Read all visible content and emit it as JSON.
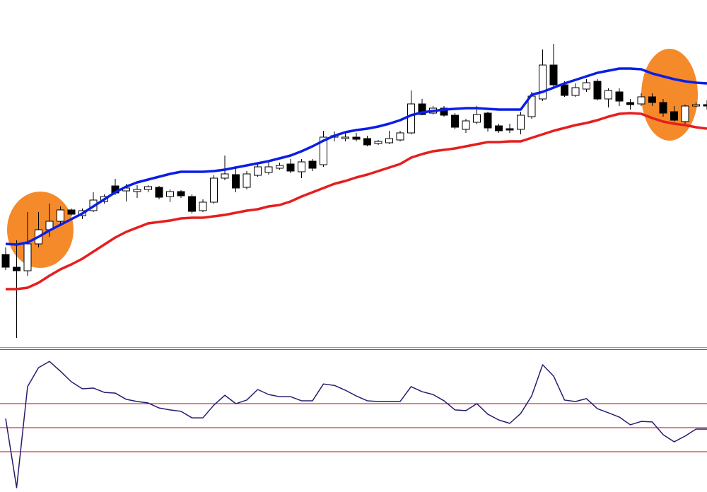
{
  "chart_data": [
    {
      "type": "candlestick",
      "ylim": [
        0,
        490
      ],
      "up_color": "#ffffff",
      "down_color": "#000000",
      "edge_color": "#000000",
      "open": [
        130,
        112,
        107,
        145,
        165,
        177,
        193,
        185,
        192,
        205,
        227,
        220,
        219,
        222,
        225,
        212,
        219,
        212,
        192,
        204,
        238,
        243,
        225,
        242,
        246,
        252,
        258,
        247,
        262,
        257,
        296,
        294,
        296,
        294,
        287,
        288,
        292,
        302,
        343,
        330,
        337,
        327,
        307,
        317,
        330,
        312,
        308,
        307,
        325,
        350,
        398,
        370,
        355,
        364,
        375,
        350,
        360,
        345,
        343,
        353,
        345,
        332,
        318,
        340,
        342
      ],
      "high": [
        140,
        150,
        190,
        190,
        202,
        198,
        195,
        195,
        218,
        215,
        237,
        230,
        228,
        228,
        227,
        222,
        221,
        215,
        208,
        242,
        270,
        255,
        248,
        260,
        260,
        260,
        265,
        265,
        265,
        305,
        304,
        302,
        302,
        298,
        292,
        305,
        305,
        362,
        350,
        340,
        340,
        330,
        322,
        340,
        332,
        315,
        315,
        332,
        360,
        420,
        428,
        375,
        372,
        378,
        378,
        365,
        365,
        350,
        358,
        358,
        350,
        340,
        342,
        345,
        348
      ],
      "low": [
        108,
        12,
        100,
        140,
        155,
        170,
        185,
        180,
        190,
        202,
        214,
        205,
        210,
        218,
        208,
        204,
        210,
        188,
        190,
        202,
        235,
        218,
        222,
        240,
        243,
        250,
        245,
        238,
        248,
        254,
        290,
        290,
        290,
        283,
        285,
        286,
        290,
        300,
        327,
        328,
        325,
        307,
        302,
        314,
        304,
        302,
        302,
        300,
        322,
        347,
        365,
        353,
        353,
        360,
        348,
        338,
        340,
        335,
        340,
        340,
        325,
        318,
        315,
        338,
        335
      ],
      "close": [
        112,
        107,
        145,
        165,
        177,
        193,
        187,
        192,
        207,
        212,
        217,
        224,
        222,
        226,
        211,
        219,
        213,
        191,
        204,
        238,
        244,
        224,
        244,
        254,
        254,
        256,
        248,
        261,
        252,
        296,
        298,
        296,
        293,
        285,
        290,
        294,
        302,
        343,
        328,
        337,
        327,
        310,
        319,
        328,
        309,
        305,
        306,
        327,
        354,
        398,
        370,
        355,
        366,
        373,
        350,
        362,
        347,
        342,
        353,
        345,
        330,
        320,
        340,
        342,
        340
      ],
      "series": [
        {
          "color": "#0a1ee6",
          "values": [
            145,
            144,
            147,
            155,
            164,
            172,
            180,
            188,
            198,
            208,
            218,
            226,
            232,
            236,
            240,
            244,
            247,
            247,
            247,
            248,
            250,
            253,
            256,
            259,
            262,
            266,
            270,
            276,
            283,
            291,
            298,
            303,
            306,
            308,
            311,
            315,
            320,
            327,
            331,
            333,
            335,
            336,
            337,
            337,
            336,
            335,
            335,
            335,
            356,
            360,
            366,
            372,
            377,
            382,
            387,
            390,
            393,
            393,
            392,
            386,
            382,
            378,
            375,
            373,
            372
          ]
        },
        {
          "color": "#e61e1e",
          "values": [
            81,
            81,
            83,
            90,
            100,
            109,
            116,
            124,
            134,
            144,
            154,
            162,
            168,
            174,
            176,
            178,
            181,
            182,
            182,
            184,
            186,
            189,
            192,
            194,
            198,
            200,
            205,
            212,
            218,
            224,
            230,
            234,
            239,
            243,
            248,
            253,
            258,
            267,
            272,
            276,
            278,
            280,
            283,
            286,
            289,
            289,
            290,
            290,
            295,
            300,
            305,
            309,
            313,
            316,
            320,
            325,
            329,
            330,
            329,
            323,
            318,
            315,
            313,
            310,
            308
          ]
        }
      ]
    },
    {
      "type": "line",
      "ylim": [
        -268,
        318
      ],
      "color": "#2a1a6e",
      "levels": [
        100,
        0,
        -100
      ],
      "level_color": "#cc0000",
      "values": [
        38,
        -250,
        171,
        250,
        276,
        235,
        191,
        162,
        165,
        147,
        144,
        118,
        109,
        103,
        82,
        74,
        68,
        41,
        41,
        94,
        135,
        100,
        115,
        159,
        138,
        129,
        129,
        112,
        112,
        182,
        176,
        156,
        132,
        112,
        109,
        109,
        109,
        171,
        150,
        138,
        112,
        74,
        71,
        100,
        56,
        32,
        18,
        59,
        132,
        262,
        215,
        115,
        109,
        121,
        79,
        62,
        44,
        12,
        26,
        24,
        -29,
        -59,
        -35,
        -6,
        -6
      ]
    }
  ]
}
